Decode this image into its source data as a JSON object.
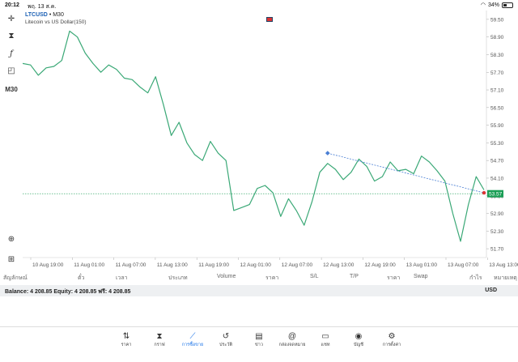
{
  "status": {
    "time": "20:12",
    "date": "พฤ. 13 ส.ค.",
    "battery": "34%",
    "battery_level": 0.34
  },
  "chart_header": {
    "symbol": "LTCUSD",
    "timeframe": "• M30",
    "description": "Litecoin vs US Dollar(150)"
  },
  "tools": {
    "timeframe_label": "M30"
  },
  "price_axis": [
    "59.50",
    "58.90",
    "58.30",
    "57.70",
    "57.10",
    "56.50",
    "55.90",
    "55.30",
    "54.70",
    "54.10",
    "53.50",
    "52.90",
    "52.30",
    "51.70"
  ],
  "current_price": "53.57",
  "time_axis": [
    "10 Aug 19:00",
    "11 Aug 01:00",
    "11 Aug 07:00",
    "11 Aug 13:00",
    "11 Aug 19:00",
    "12 Aug 01:00",
    "12 Aug 07:00",
    "12 Aug 13:00",
    "12 Aug 19:00",
    "13 Aug 01:00",
    "13 Aug 07:00",
    "13 Aug 13:00"
  ],
  "chart_data": {
    "type": "line",
    "title": "Litecoin vs US Dollar(150)",
    "ylim": [
      51.4,
      59.8
    ],
    "series": [
      {
        "name": "LTCUSD",
        "values": [
          58.0,
          57.95,
          57.6,
          57.85,
          57.9,
          58.1,
          59.1,
          58.9,
          58.35,
          58.0,
          57.7,
          57.95,
          57.8,
          57.5,
          57.45,
          57.2,
          57.0,
          57.55,
          56.6,
          55.55,
          56.0,
          55.3,
          54.9,
          54.7,
          55.35,
          54.95,
          54.7,
          53.0,
          53.1,
          53.2,
          53.75,
          53.85,
          53.6,
          52.8,
          53.4,
          53.0,
          52.5,
          53.3,
          54.3,
          54.6,
          54.4,
          54.05,
          54.3,
          54.75,
          54.5,
          54.0,
          54.15,
          54.65,
          54.35,
          54.4,
          54.25,
          54.85,
          54.65,
          54.35,
          54.0,
          52.9,
          51.95,
          53.2,
          54.15,
          53.7
        ]
      }
    ],
    "trendline": {
      "start_index": 39,
      "start_value": 54.95,
      "end_index": 59,
      "end_value": 53.6
    }
  },
  "columns": [
    "สัญลักษณ์",
    "ตั๋ว",
    "เวลา",
    "ประเภท",
    "Volume",
    "ราคา",
    "S/L",
    "T/P",
    "ราคา",
    "Swap",
    "กำไร",
    "หมายเหตุ"
  ],
  "balance": {
    "text": "Balance: 4 208.85 Equity: 4 208.85 ฟรี: 4 208.85",
    "currency": "USD"
  },
  "nav": [
    {
      "label": "ราคา",
      "icon": "⇅"
    },
    {
      "label": "กราฟ",
      "icon": "⧗"
    },
    {
      "label": "การซื้อขาย",
      "icon": "⟋"
    },
    {
      "label": "ประวัติ",
      "icon": "↺"
    },
    {
      "label": "ข่าว",
      "icon": "▤"
    },
    {
      "label": "กล่องจดหมาย",
      "icon": "@"
    },
    {
      "label": "แชท",
      "icon": "▭"
    },
    {
      "label": "บัญชี",
      "icon": "◉"
    },
    {
      "label": "การตั้งค่า",
      "icon": "⚙"
    }
  ],
  "colors": {
    "line": "#3aa876",
    "accent": "#1a73e8",
    "current": "#1a9e55",
    "trend": "#4a7fd4"
  }
}
